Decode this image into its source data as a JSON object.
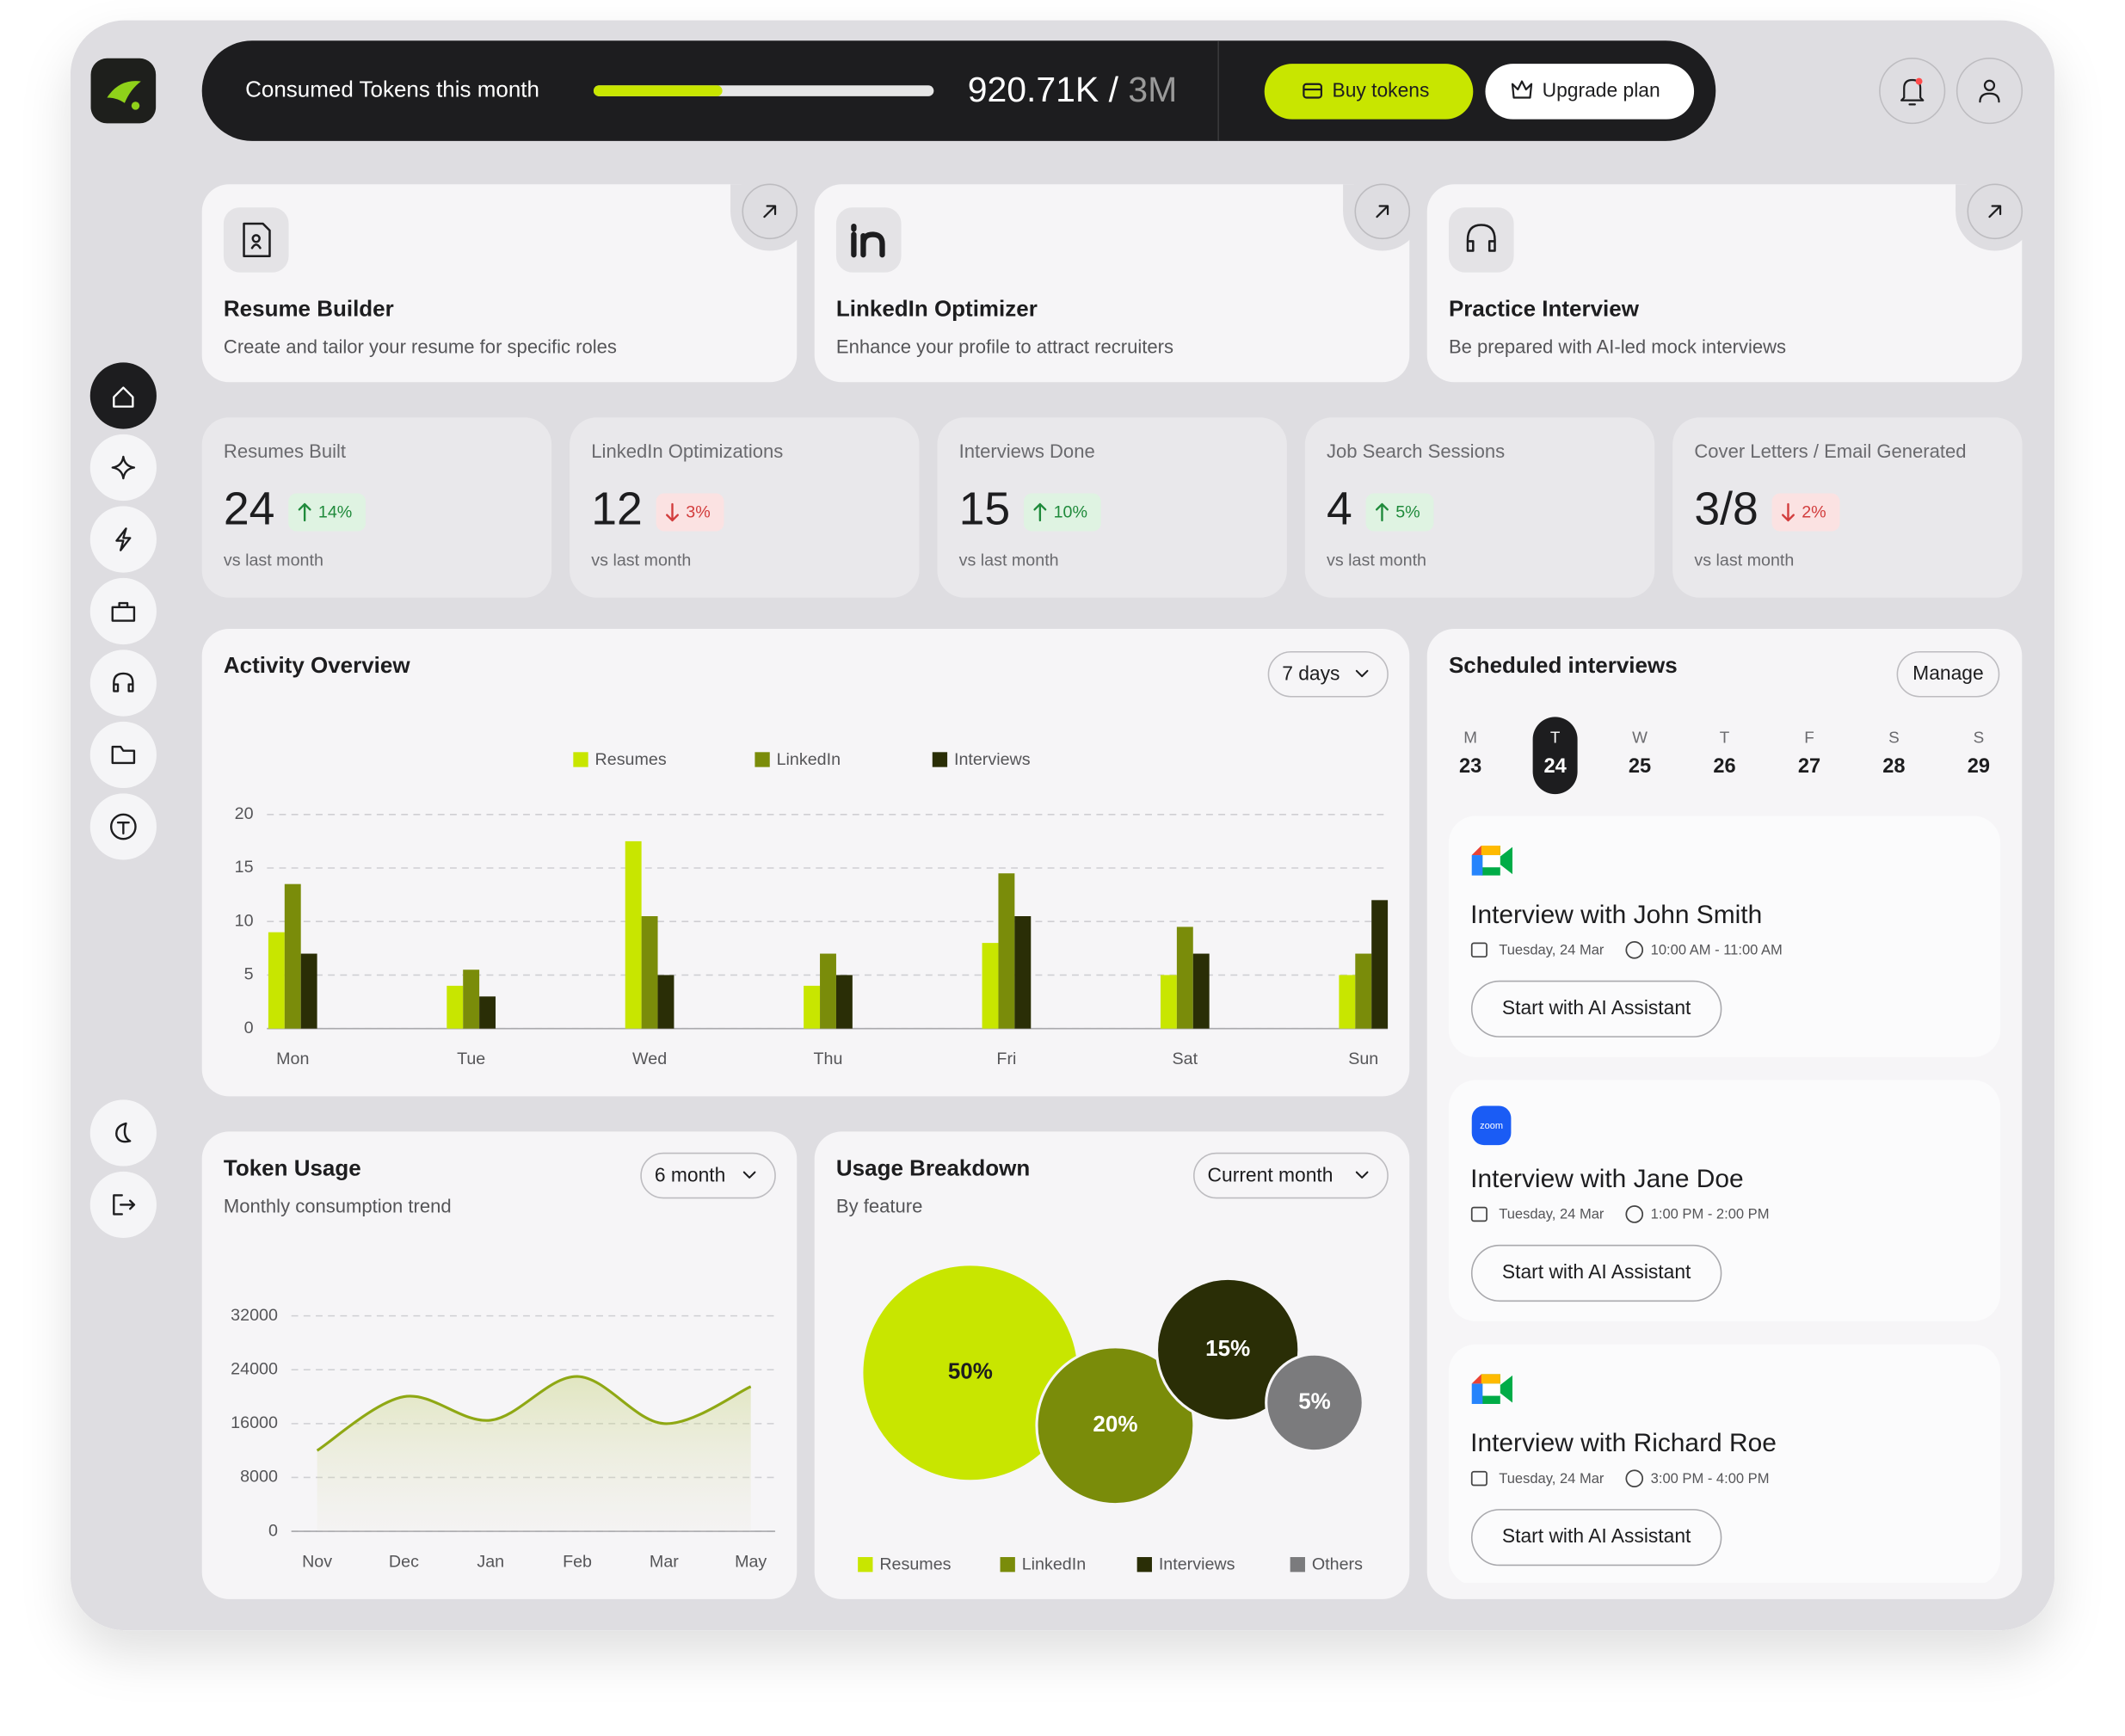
{
  "header": {
    "token_label": "Consumed Tokens this month",
    "token_used": "920.71K /",
    "token_total": "3M",
    "buy_button": "Buy tokens",
    "upgrade_button": "Upgrade plan"
  },
  "feature_cards": [
    {
      "title": "Resume Builder",
      "description": "Create and tailor your resume for specific roles"
    },
    {
      "title": "LinkedIn Optimizer",
      "description": "Enhance your profile to attract recruiters"
    },
    {
      "title": "Practice Interview",
      "description": "Be prepared with AI-led mock interviews"
    }
  ],
  "stats": [
    {
      "label": "Resumes Built",
      "value": "24",
      "change": "14%",
      "trend": "up",
      "note": "vs last month"
    },
    {
      "label": "LinkedIn Optimizations",
      "value": "12",
      "change": "3%",
      "trend": "down",
      "note": "vs last month"
    },
    {
      "label": "Interviews Done",
      "value": "15",
      "change": "10%",
      "trend": "up",
      "note": "vs last month"
    },
    {
      "label": "Job Search Sessions",
      "value": "4",
      "change": "5%",
      "trend": "up",
      "note": "vs last month"
    },
    {
      "label": "Cover Letters / Email Generated",
      "value": "3/8",
      "change": "2%",
      "trend": "down",
      "note": "vs last month"
    }
  ],
  "chart_data": [
    {
      "type": "bar",
      "title": "Activity Overview",
      "range": "7 days",
      "categories": [
        "Mon",
        "Tue",
        "Wed",
        "Thu",
        "Fri",
        "Sat",
        "Sun"
      ],
      "series": [
        {
          "name": "Resumes",
          "color": "#c8e600",
          "values": [
            9,
            4,
            17.5,
            4,
            8,
            5,
            5
          ]
        },
        {
          "name": "LinkedIn",
          "color": "#7a8c0a",
          "values": [
            13.5,
            5.5,
            10.5,
            7,
            14.5,
            9.5,
            7
          ]
        },
        {
          "name": "Interviews",
          "color": "#2a2e06",
          "values": [
            7,
            3,
            5,
            5,
            10.5,
            7,
            12
          ]
        }
      ],
      "ylim": [
        0,
        20
      ],
      "yticks": [
        0,
        5,
        10,
        15,
        20
      ],
      "grid": true
    },
    {
      "type": "line",
      "title": "Token Usage",
      "subtitle": "Monthly consumption trend",
      "range": "6 month",
      "categories": [
        "Nov",
        "Dec",
        "Jan",
        "Feb",
        "Mar",
        "May"
      ],
      "values": [
        12000,
        20000,
        16500,
        23000,
        16000,
        21500
      ],
      "color": "#8fa814",
      "ylim": [
        0,
        32000
      ],
      "yticks": [
        0,
        8000,
        16000,
        24000,
        32000
      ],
      "grid": true
    },
    {
      "type": "bubble",
      "title": "Usage Breakdown",
      "subtitle": "By feature",
      "range": "Current month",
      "categories": [
        "Resumes",
        "LinkedIn",
        "Interviews",
        "Others"
      ],
      "values": [
        50,
        20,
        15,
        5
      ],
      "value_labels": [
        "50%",
        "20%",
        "15%",
        "5%"
      ],
      "colors": [
        "#c8e600",
        "#7a8c0a",
        "#2a2e06",
        "#7b7b7d"
      ]
    }
  ],
  "scheduled": {
    "title": "Scheduled interviews",
    "button": "Manage",
    "days": [
      {
        "weekday": "M",
        "date": "23"
      },
      {
        "weekday": "T",
        "date": "24",
        "selected": true
      },
      {
        "weekday": "W",
        "date": "25"
      },
      {
        "weekday": "T",
        "date": "26"
      },
      {
        "weekday": "F",
        "date": "27"
      },
      {
        "weekday": "S",
        "date": "28"
      },
      {
        "weekday": "S",
        "date": "29"
      }
    ],
    "interviews": [
      {
        "platform": "meet",
        "title": "Interview with John Smith",
        "date": "Tuesday, 24 Mar",
        "time": "10:00 AM - 11:00 AM",
        "button": "Start with AI Assistant"
      },
      {
        "platform": "zoom",
        "title": "Interview with Jane Doe",
        "date": "Tuesday, 24 Mar",
        "time": "1:00 PM - 2:00 PM",
        "button": "Start with AI Assistant"
      },
      {
        "platform": "meet",
        "title": "Interview with Richard Roe",
        "date": "Tuesday, 24 Mar",
        "time": "3:00 PM - 4:00 PM",
        "button": "Start with AI Assistant"
      }
    ]
  }
}
